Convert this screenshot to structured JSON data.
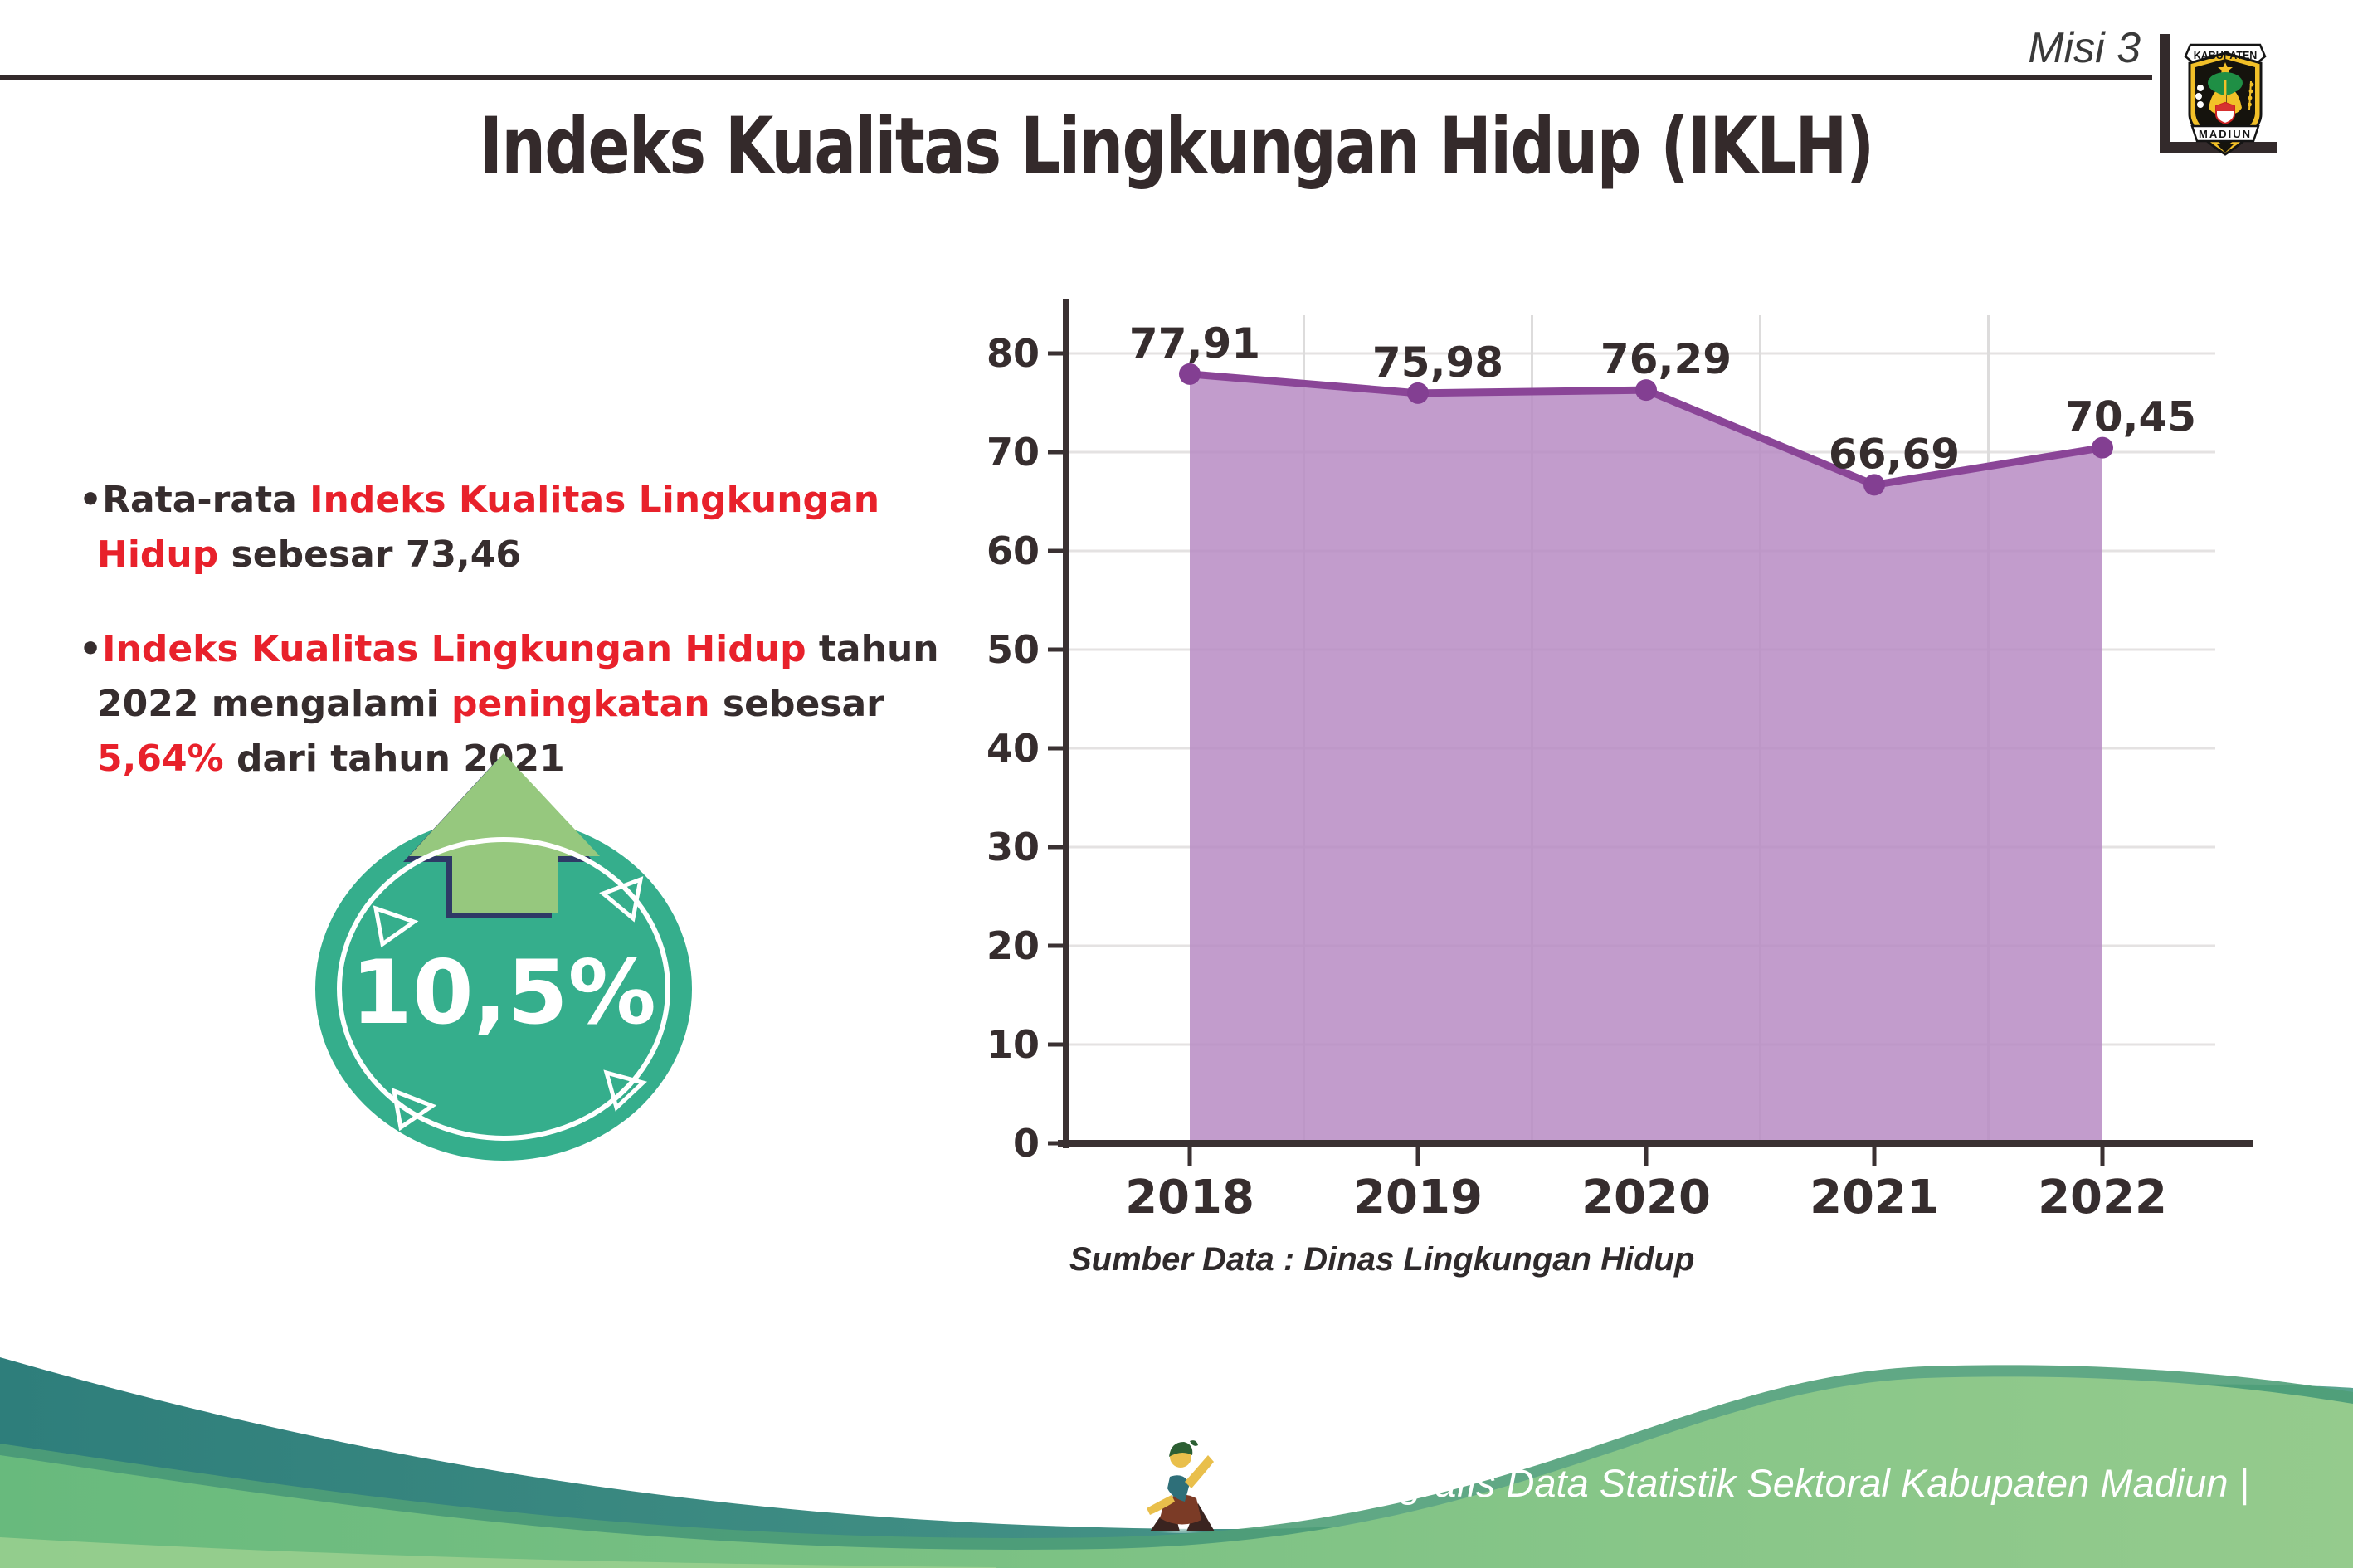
{
  "header": {
    "misi_label": "Misi 3",
    "logo": {
      "top_text": "KABUPATEN",
      "bottom_text": "MADIUN"
    }
  },
  "title": {
    "text": "Indeks Kualitas Lingkungan Hidup (IKLH)"
  },
  "bullets": {
    "items": [
      {
        "runs": [
          {
            "text": "Rata-rata ",
            "red": false
          },
          {
            "text": "Indeks Kualitas Lingkungan Hidup",
            "red": true
          },
          {
            "text": " sebesar 73,46",
            "red": false
          }
        ]
      },
      {
        "runs": [
          {
            "text": "Indeks Kualitas Lingkungan Hidup",
            "red": true
          },
          {
            "text": " tahun 2022 mengalami ",
            "red": false
          },
          {
            "text": "peningkatan",
            "red": true
          },
          {
            "text": " sebesar ",
            "red": false
          },
          {
            "text": "5,64%",
            "red": true
          },
          {
            "text": " dari tahun 2021",
            "red": false
          }
        ]
      }
    ]
  },
  "badge": {
    "value": "10,5%"
  },
  "chart_data": {
    "type": "area",
    "title": "",
    "xlabel": "",
    "ylabel": "",
    "categories": [
      "2018",
      "2019",
      "2020",
      "2021",
      "2022"
    ],
    "series": [
      {
        "name": "IKLH",
        "values": [
          77.91,
          75.98,
          76.29,
          66.69,
          70.45
        ]
      }
    ],
    "point_labels": [
      "77,91",
      "75,98",
      "76,29",
      "66,69",
      "70,45"
    ],
    "ylim": [
      0,
      80
    ],
    "yticks": [
      0,
      10,
      20,
      30,
      40,
      50,
      60,
      70,
      80
    ],
    "grid": true,
    "legend": "none",
    "source_note": "Sumber Data : Dinas Lingkungan Hidup"
  },
  "footer": {
    "text": "Media Infografis Data Statistik Sektoral Kabupaten Madiun |"
  },
  "colors": {
    "accent_red": "#e8212b",
    "text_dark": "#362d2e",
    "title_dark": "#342a2b",
    "axis_dark": "#3a3132",
    "area_purple": "#b78bc3",
    "line_purple": "#8a4597",
    "dot_purple": "#833f92",
    "badge_teal": "#35ae8c",
    "arrow_green": "#96c87e",
    "arrow_outline_navy": "#2e3a66",
    "footer_teal_1": "#2e7e7b",
    "footer_teal_2": "#59a48f",
    "footer_green_1": "#68ba7d",
    "footer_green_2": "#95cb8d"
  }
}
